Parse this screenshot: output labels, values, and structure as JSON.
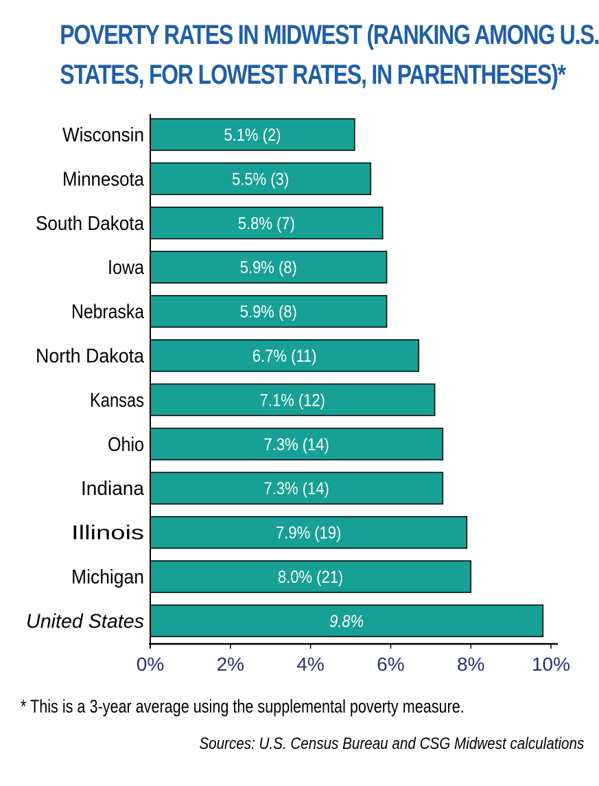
{
  "chart_data": {
    "type": "bar",
    "orientation": "horizontal",
    "title_lines": [
      "POVERTY RATES IN MIDWEST (RANKING AMONG U.S.",
      "STATES, FOR LOWEST RATES, IN PARENTHESES)*"
    ],
    "categories": [
      "Wisconsin",
      "Minnesota",
      "South Dakota",
      "Iowa",
      "Nebraska",
      "North Dakota",
      "Kansas",
      "Ohio",
      "Indiana",
      "Illinois",
      "Michigan",
      "United States"
    ],
    "values": [
      5.1,
      5.5,
      5.8,
      5.9,
      5.9,
      6.7,
      7.1,
      7.3,
      7.3,
      7.9,
      8.0,
      9.8
    ],
    "data_labels": [
      "5.1% (2)",
      "5.5% (3)",
      "5.8% (7)",
      "5.9% (8)",
      "5.9% (8)",
      "6.7% (11)",
      "7.1% (12)",
      "7.3% (14)",
      "7.3% (14)",
      "7.9% (19)",
      "8.0% (21)",
      "9.8%"
    ],
    "italic_categories": [
      "United States"
    ],
    "xlim": [
      0,
      10
    ],
    "xticks": [
      0,
      2,
      4,
      6,
      8,
      10
    ],
    "xtick_labels": [
      "0%",
      "2%",
      "4%",
      "6%",
      "8%",
      "10%"
    ],
    "grid": false,
    "legend": "none"
  },
  "footnote": "* This is a 3-year average using the supplemental poverty measure.",
  "source": "Sources: U.S. Census Bureau and CSG Midwest calculations",
  "colors": {
    "title": "#1f5fa8",
    "bar_fill": "#17a095",
    "bar_stroke": "#000000",
    "bar_label": "#ffffff",
    "tick_label": "#2b2f6e",
    "category_label": "#000000"
  }
}
